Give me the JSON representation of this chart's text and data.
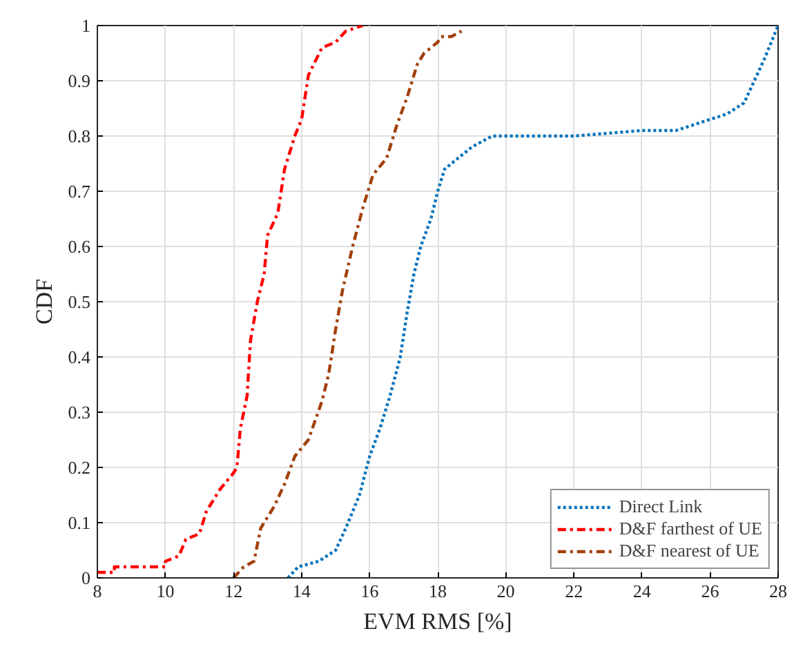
{
  "chart_data": {
    "type": "line",
    "xlabel": "EVM RMS [%]",
    "ylabel": "CDF",
    "xlim": [
      8,
      28
    ],
    "ylim": [
      0,
      1
    ],
    "xticks": [
      8,
      10,
      12,
      14,
      16,
      18,
      20,
      22,
      24,
      26,
      28
    ],
    "yticks": [
      0,
      0.1,
      0.2,
      0.3,
      0.4,
      0.5,
      0.6,
      0.7,
      0.8,
      0.9,
      1
    ],
    "grid": true,
    "legend": "bottom right",
    "marker": "none",
    "series": [
      {
        "name": "Direct Link",
        "color": "#0072bd",
        "line_style": "dotted",
        "x": [
          13.6,
          13.9,
          14.5,
          15.0,
          15.3,
          15.7,
          16.0,
          16.3,
          16.6,
          16.9,
          17.1,
          17.3,
          17.5,
          17.8,
          18.0,
          18.2,
          18.6,
          19.0,
          19.6,
          20.0,
          22.0,
          23.0,
          24.0,
          25.0,
          25.5,
          26.0,
          26.5,
          27.0,
          27.3,
          27.6,
          28.0
        ],
        "values": [
          0,
          0.02,
          0.03,
          0.05,
          0.09,
          0.15,
          0.22,
          0.27,
          0.33,
          0.4,
          0.48,
          0.55,
          0.6,
          0.65,
          0.7,
          0.74,
          0.76,
          0.78,
          0.8,
          0.8,
          0.8,
          0.805,
          0.81,
          0.81,
          0.82,
          0.83,
          0.84,
          0.86,
          0.9,
          0.94,
          1.0
        ]
      },
      {
        "name": "D&F farthest of UE",
        "color": "#ff0000",
        "line_style": "dashed",
        "x": [
          8.0,
          8.5,
          8.5,
          10.0,
          10.0,
          10.4,
          10.6,
          11.0,
          11.2,
          11.6,
          12.0,
          12.1,
          12.2,
          12.4,
          12.5,
          12.7,
          12.9,
          13.0,
          13.3,
          13.5,
          13.8,
          14.0,
          14.2,
          14.6,
          15.0,
          15.3,
          15.8
        ],
        "values": [
          0.01,
          0.01,
          0.02,
          0.02,
          0.03,
          0.04,
          0.07,
          0.08,
          0.12,
          0.16,
          0.19,
          0.2,
          0.27,
          0.33,
          0.43,
          0.5,
          0.55,
          0.62,
          0.66,
          0.74,
          0.8,
          0.83,
          0.91,
          0.96,
          0.97,
          0.99,
          1.0
        ]
      },
      {
        "name": "D&F nearest of UE",
        "color": "#a2400c",
        "line_style": "dashed",
        "x": [
          12.0,
          12.3,
          12.6,
          12.8,
          13.2,
          13.5,
          13.8,
          14.2,
          14.6,
          14.8,
          15.0,
          15.2,
          15.5,
          15.8,
          16.1,
          16.5,
          16.8,
          17.1,
          17.4,
          17.6,
          18.0,
          18.1,
          18.4,
          18.7
        ],
        "values": [
          0,
          0.02,
          0.03,
          0.09,
          0.13,
          0.17,
          0.22,
          0.25,
          0.32,
          0.37,
          0.45,
          0.52,
          0.6,
          0.67,
          0.73,
          0.76,
          0.82,
          0.87,
          0.93,
          0.95,
          0.97,
          0.98,
          0.98,
          0.99
        ]
      }
    ]
  }
}
